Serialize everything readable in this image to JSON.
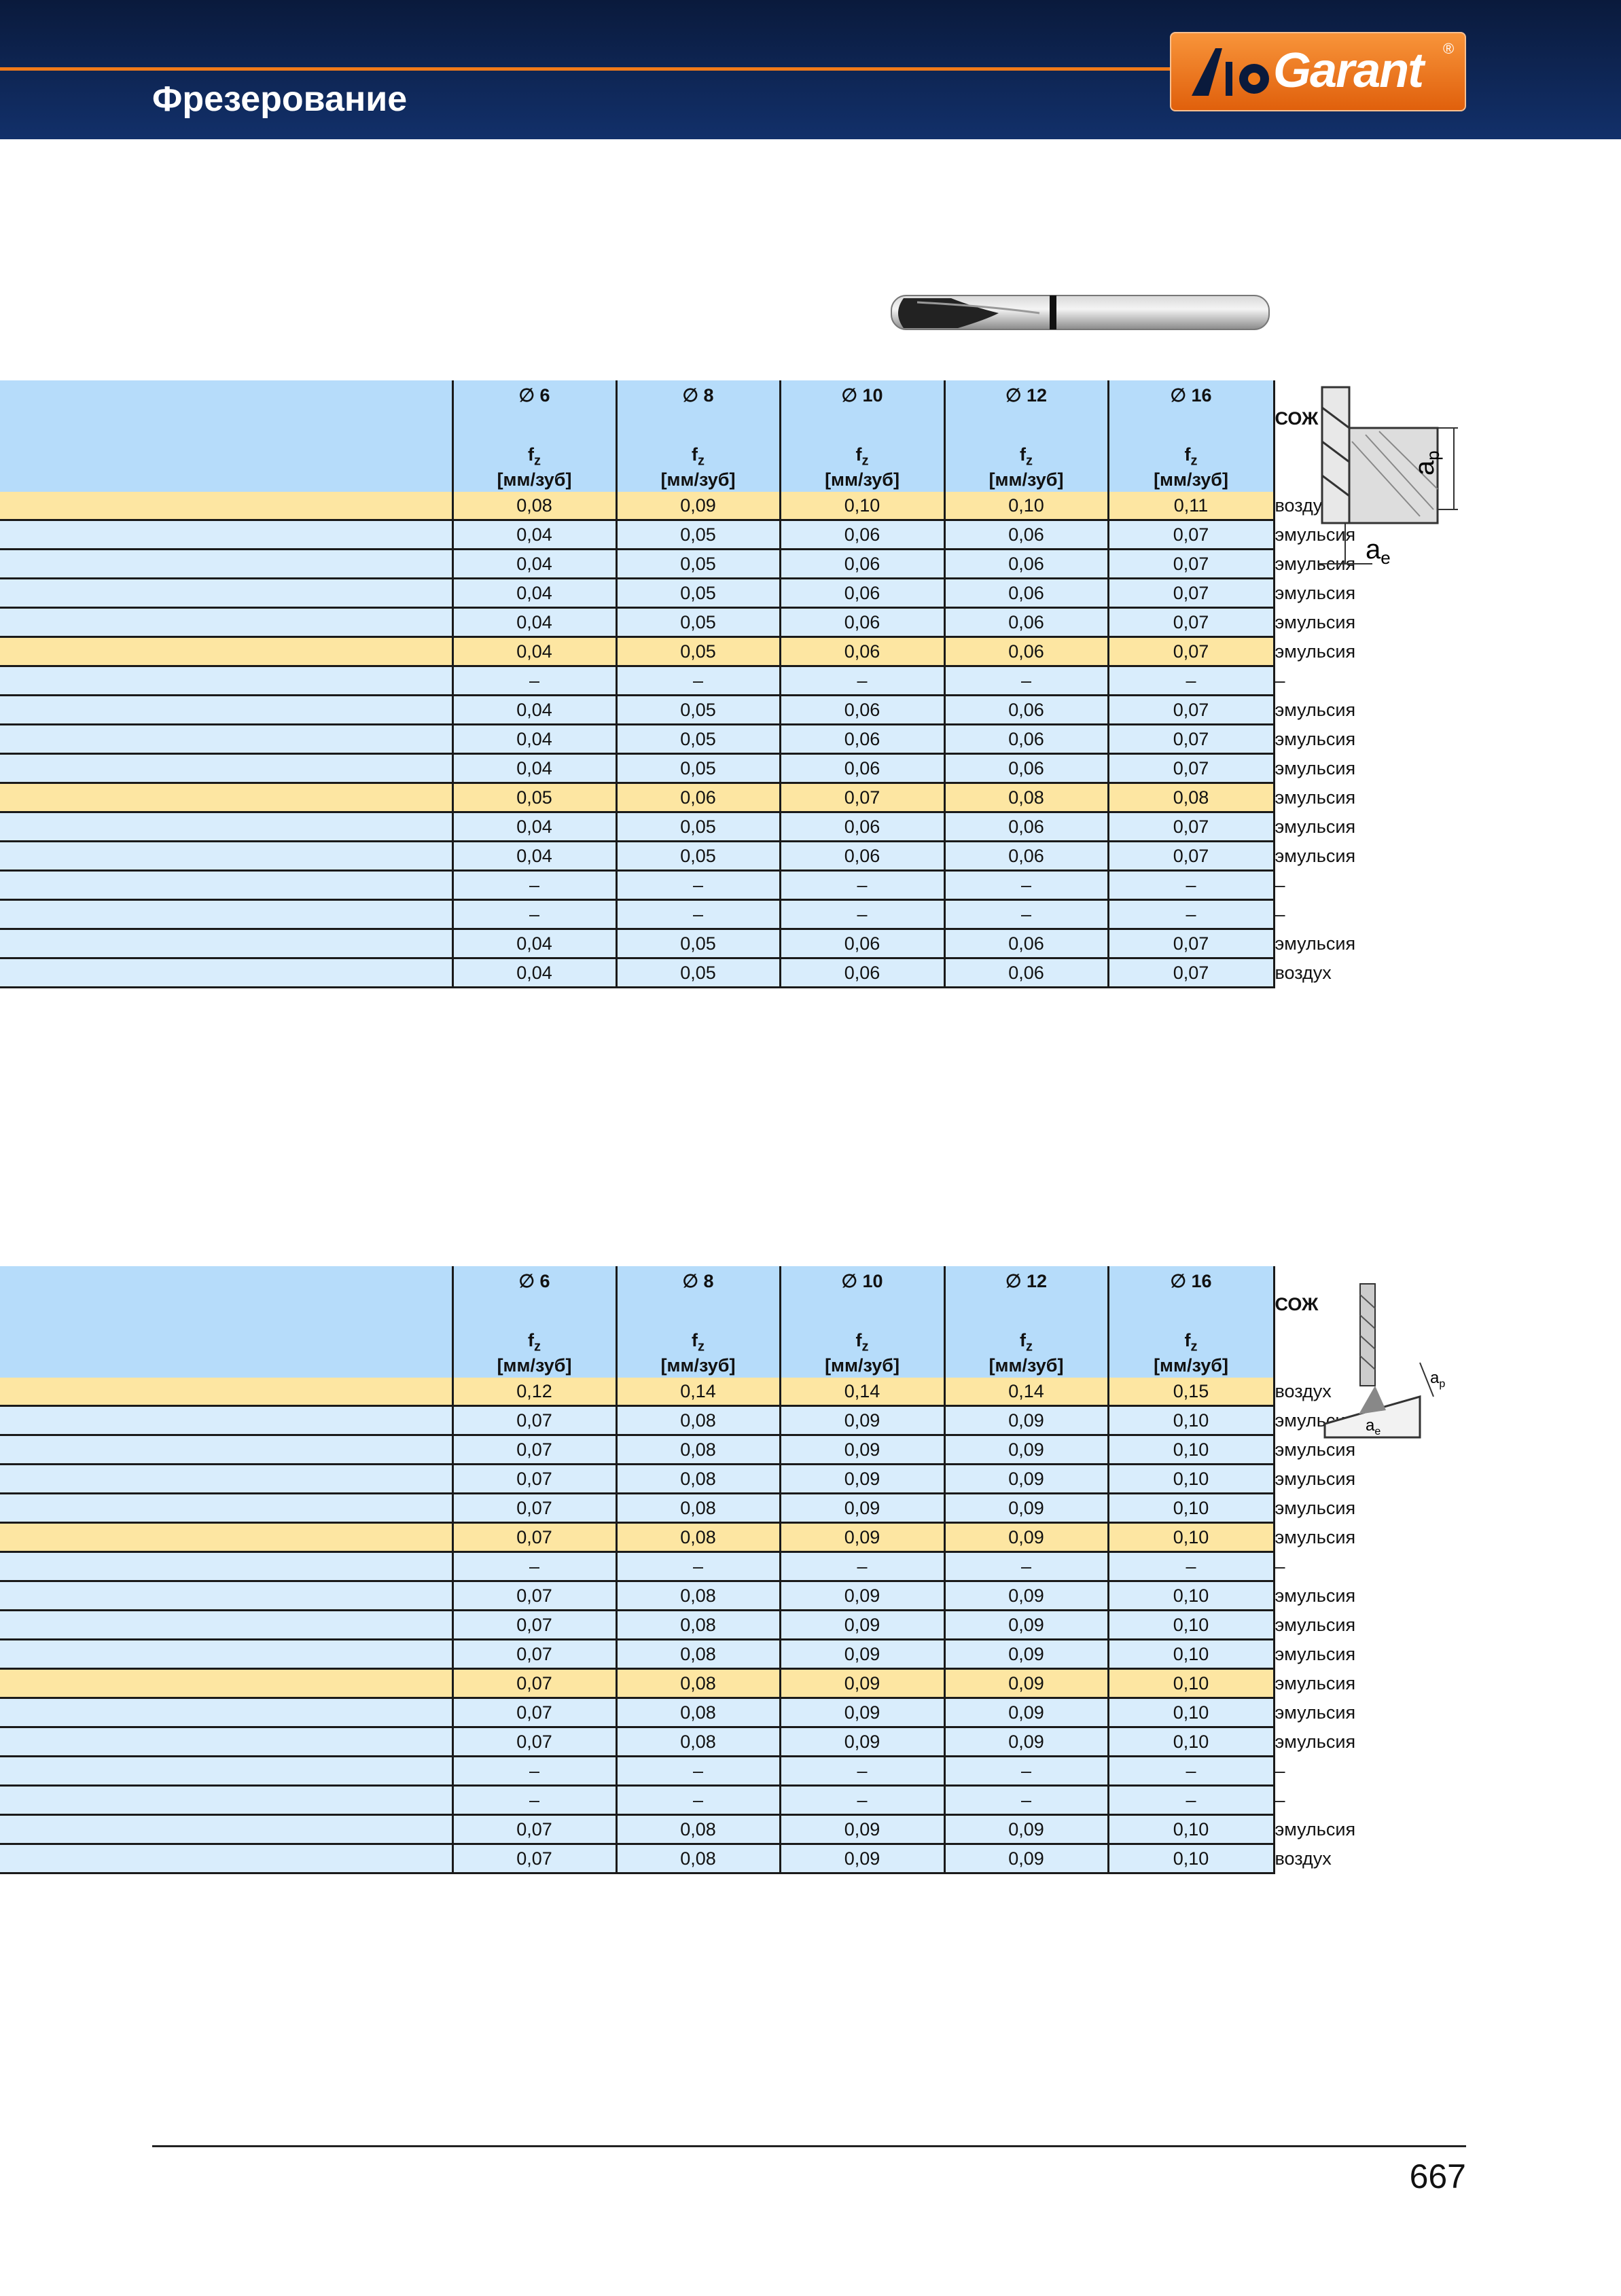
{
  "header": {
    "title": "Фрезерование",
    "logo": {
      "text": "Garant",
      "mark": "®"
    }
  },
  "tables": [
    {
      "header": {
        "columns": [
          {
            "diameter": "∅ 6",
            "symbol": "f",
            "subscript": "z",
            "unit": "[мм/зуб]"
          },
          {
            "diameter": "∅ 8",
            "symbol": "f",
            "subscript": "z",
            "unit": "[мм/зуб]"
          },
          {
            "diameter": "∅ 10",
            "symbol": "f",
            "subscript": "z",
            "unit": "[мм/зуб]"
          },
          {
            "diameter": "∅ 12",
            "symbol": "f",
            "subscript": "z",
            "unit": "[мм/зуб]"
          },
          {
            "diameter": "∅ 16",
            "symbol": "f",
            "subscript": "z",
            "unit": "[мм/зуб]"
          }
        ],
        "coolant": "СОЖ"
      },
      "rows": [
        [
          "0,08",
          "0,09",
          "0,10",
          "0,10",
          "0,11",
          "воздух"
        ],
        [
          "0,04",
          "0,05",
          "0,06",
          "0,06",
          "0,07",
          "эмульсия"
        ],
        [
          "0,04",
          "0,05",
          "0,06",
          "0,06",
          "0,07",
          "эмульсия"
        ],
        [
          "0,04",
          "0,05",
          "0,06",
          "0,06",
          "0,07",
          "эмульсия"
        ],
        [
          "0,04",
          "0,05",
          "0,06",
          "0,06",
          "0,07",
          "эмульсия"
        ],
        [
          "0,04",
          "0,05",
          "0,06",
          "0,06",
          "0,07",
          "эмульсия"
        ],
        [
          "–",
          "–",
          "–",
          "–",
          "–",
          "–"
        ],
        [
          "0,04",
          "0,05",
          "0,06",
          "0,06",
          "0,07",
          "эмульсия"
        ],
        [
          "0,04",
          "0,05",
          "0,06",
          "0,06",
          "0,07",
          "эмульсия"
        ],
        [
          "0,04",
          "0,05",
          "0,06",
          "0,06",
          "0,07",
          "эмульсия"
        ],
        [
          "0,05",
          "0,06",
          "0,07",
          "0,08",
          "0,08",
          "эмульсия"
        ],
        [
          "0,04",
          "0,05",
          "0,06",
          "0,06",
          "0,07",
          "эмульсия"
        ],
        [
          "0,04",
          "0,05",
          "0,06",
          "0,06",
          "0,07",
          "эмульсия"
        ],
        [
          "–",
          "–",
          "–",
          "–",
          "–",
          "–"
        ],
        [
          "–",
          "–",
          "–",
          "–",
          "–",
          "–"
        ],
        [
          "0,04",
          "0,05",
          "0,06",
          "0,06",
          "0,07",
          "эмульсия"
        ],
        [
          "0,04",
          "0,05",
          "0,06",
          "0,06",
          "0,07",
          "воздух"
        ]
      ]
    },
    {
      "header": {
        "columns": [
          {
            "diameter": "∅ 6",
            "symbol": "f",
            "subscript": "z",
            "unit": "[мм/зуб]"
          },
          {
            "diameter": "∅ 8",
            "symbol": "f",
            "subscript": "z",
            "unit": "[мм/зуб]"
          },
          {
            "diameter": "∅ 10",
            "symbol": "f",
            "subscript": "z",
            "unit": "[мм/зуб]"
          },
          {
            "diameter": "∅ 12",
            "symbol": "f",
            "subscript": "z",
            "unit": "[мм/зуб]"
          },
          {
            "diameter": "∅ 16",
            "symbol": "f",
            "subscript": "z",
            "unit": "[мм/зуб]"
          }
        ],
        "coolant": "СОЖ"
      },
      "rows": [
        [
          "0,12",
          "0,14",
          "0,14",
          "0,14",
          "0,15",
          "воздух"
        ],
        [
          "0,07",
          "0,08",
          "0,09",
          "0,09",
          "0,10",
          "эмульсия"
        ],
        [
          "0,07",
          "0,08",
          "0,09",
          "0,09",
          "0,10",
          "эмульсия"
        ],
        [
          "0,07",
          "0,08",
          "0,09",
          "0,09",
          "0,10",
          "эмульсия"
        ],
        [
          "0,07",
          "0,08",
          "0,09",
          "0,09",
          "0,10",
          "эмульсия"
        ],
        [
          "0,07",
          "0,08",
          "0,09",
          "0,09",
          "0,10",
          "эмульсия"
        ],
        [
          "–",
          "–",
          "–",
          "–",
          "–",
          "–"
        ],
        [
          "0,07",
          "0,08",
          "0,09",
          "0,09",
          "0,10",
          "эмульсия"
        ],
        [
          "0,07",
          "0,08",
          "0,09",
          "0,09",
          "0,10",
          "эмульсия"
        ],
        [
          "0,07",
          "0,08",
          "0,09",
          "0,09",
          "0,10",
          "эмульсия"
        ],
        [
          "0,07",
          "0,08",
          "0,09",
          "0,09",
          "0,10",
          "эмульсия"
        ],
        [
          "0,07",
          "0,08",
          "0,09",
          "0,09",
          "0,10",
          "эмульсия"
        ],
        [
          "0,07",
          "0,08",
          "0,09",
          "0,09",
          "0,10",
          "эмульсия"
        ],
        [
          "–",
          "–",
          "–",
          "–",
          "–",
          "–"
        ],
        [
          "–",
          "–",
          "–",
          "–",
          "–",
          "–"
        ],
        [
          "0,07",
          "0,08",
          "0,09",
          "0,09",
          "0,10",
          "эмульсия"
        ],
        [
          "0,07",
          "0,08",
          "0,09",
          "0,09",
          "0,10",
          "воздух"
        ]
      ]
    }
  ],
  "diagrams": [
    {
      "labels": [
        {
          "text": "a",
          "sub": "p"
        },
        {
          "text": "a",
          "sub": "e"
        }
      ]
    },
    {
      "labels": [
        {
          "text": "a",
          "sub": "p"
        },
        {
          "text": "a",
          "sub": "e"
        }
      ]
    }
  ],
  "footer": {
    "page_number": "667"
  }
}
